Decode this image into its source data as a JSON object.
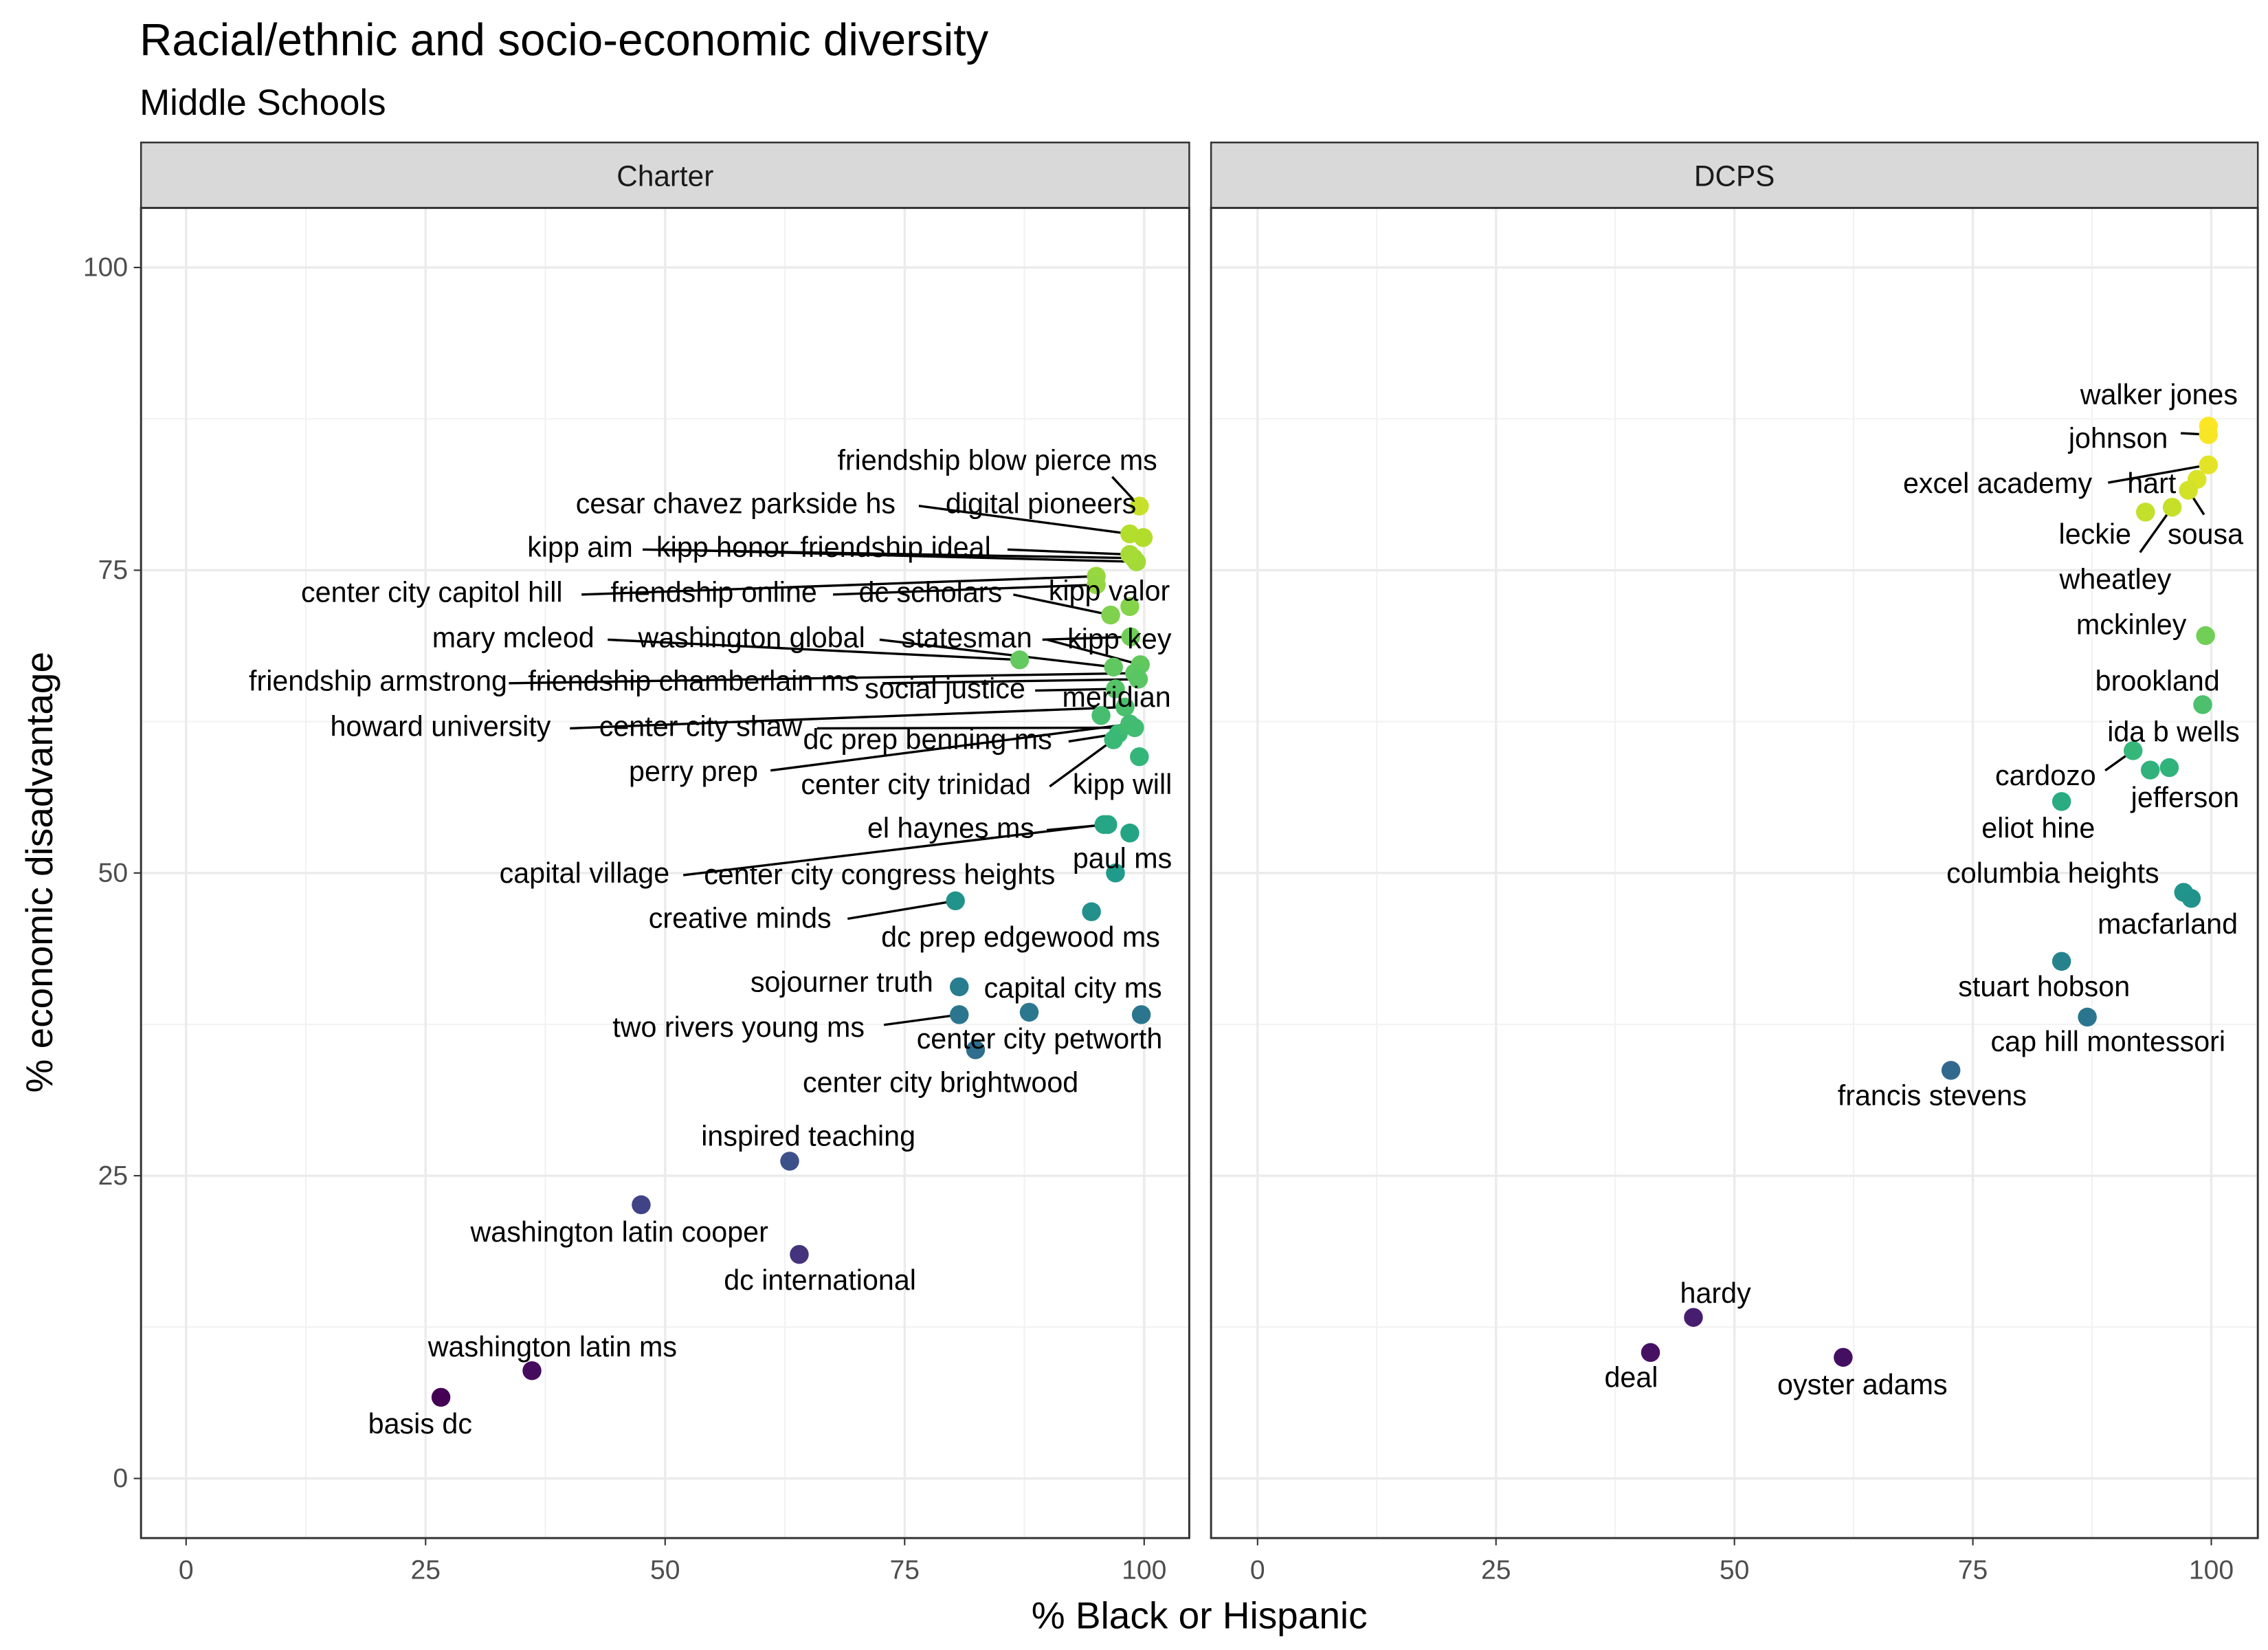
{
  "chart_data": {
    "type": "scatter",
    "title": "Racial/ethnic and socio-economic diversity",
    "subtitle": "Middle Schools",
    "xlabel": "% Black or Hispanic",
    "ylabel": "% economic disadvantage",
    "xlim": [
      0,
      100
    ],
    "ylim": [
      0,
      100
    ],
    "xticks": [
      "0",
      "25",
      "50",
      "75",
      "100"
    ],
    "yticks": [
      "0",
      "25",
      "50",
      "75",
      "100"
    ],
    "grid": true,
    "color_scale": "viridis by % economic disadvantage",
    "panels": [
      {
        "name": "Charter",
        "points": [
          {
            "label": "friendship blow pierce ms",
            "x": 99.5,
            "y": 80.3
          },
          {
            "label": "cesar chavez parkside hs",
            "x": 98.5,
            "y": 78.0
          },
          {
            "label": "digital pioneers",
            "x": 99.9,
            "y": 77.7
          },
          {
            "label": "kipp aim",
            "x": 98.9,
            "y": 76.0
          },
          {
            "label": "kipp honor",
            "x": 99.2,
            "y": 75.7
          },
          {
            "label": "friendship ideal",
            "x": 98.5,
            "y": 76.3
          },
          {
            "label": "center city capitol hill",
            "x": 95.0,
            "y": 74.5
          },
          {
            "label": "friendship online",
            "x": 95.0,
            "y": 73.8
          },
          {
            "label": "dc scholars",
            "x": 96.5,
            "y": 71.3
          },
          {
            "label": "kipp valor",
            "x": 98.5,
            "y": 72.0
          },
          {
            "label": "mary mcleod",
            "x": 87.0,
            "y": 67.6
          },
          {
            "label": "washington global",
            "x": 96.8,
            "y": 67.0
          },
          {
            "label": "statesman",
            "x": 98.6,
            "y": 69.5
          },
          {
            "label": "kipp key",
            "x": 99.6,
            "y": 67.2
          },
          {
            "label": "friendship armstrong",
            "x": 99.0,
            "y": 66.5
          },
          {
            "label": "friendship chamberlain ms",
            "x": 99.4,
            "y": 66.0
          },
          {
            "label": "social justice",
            "x": 97.0,
            "y": 65.2
          },
          {
            "label": "meridian",
            "x": 95.5,
            "y": 63.0
          },
          {
            "label": "howard university",
            "x": 98.0,
            "y": 63.7
          },
          {
            "label": "center city shaw",
            "x": 99.0,
            "y": 62.0
          },
          {
            "label": "dc prep benning ms",
            "x": 97.3,
            "y": 61.5
          },
          {
            "label": "perry prep",
            "x": 98.5,
            "y": 62.3
          },
          {
            "label": "center city trinidad",
            "x": 96.8,
            "y": 61.0
          },
          {
            "label": "kipp will",
            "x": 99.5,
            "y": 59.6
          },
          {
            "label": "el haynes ms",
            "x": 96.2,
            "y": 54.0
          },
          {
            "label": "capital village",
            "x": 95.8,
            "y": 54.0
          },
          {
            "label": "center city congress heights",
            "x": 98.5,
            "y": 53.3
          },
          {
            "label": "paul ms",
            "x": 97.0,
            "y": 50.0
          },
          {
            "label": "dc prep edgewood ms",
            "x": 94.5,
            "y": 46.8
          },
          {
            "label": "creative minds",
            "x": 80.3,
            "y": 47.7
          },
          {
            "label": "sojourner truth",
            "x": 80.7,
            "y": 40.6
          },
          {
            "label": "two rivers young ms",
            "x": 80.7,
            "y": 38.3
          },
          {
            "label": "capital city ms",
            "x": 88.0,
            "y": 38.5
          },
          {
            "label": "center city petworth",
            "x": 99.7,
            "y": 38.3
          },
          {
            "label": "center city brightwood",
            "x": 82.4,
            "y": 35.4
          },
          {
            "label": "inspired teaching",
            "x": 63.0,
            "y": 26.2
          },
          {
            "label": "washington latin cooper",
            "x": 47.5,
            "y": 22.6
          },
          {
            "label": "dc international",
            "x": 64.0,
            "y": 18.5
          },
          {
            "label": "washington latin ms",
            "x": 36.1,
            "y": 8.9
          },
          {
            "label": "basis dc",
            "x": 26.6,
            "y": 6.7
          }
        ]
      },
      {
        "name": "DCPS",
        "points": [
          {
            "label": "walker jones",
            "x": 99.7,
            "y": 86.9
          },
          {
            "label": "johnson",
            "x": 99.7,
            "y": 86.2
          },
          {
            "label": "excel academy",
            "x": 99.7,
            "y": 83.7
          },
          {
            "label": "hart",
            "x": 98.5,
            "y": 82.5
          },
          {
            "label": "sousa",
            "x": 97.6,
            "y": 81.6
          },
          {
            "label": "leckie",
            "x": 93.1,
            "y": 79.8
          },
          {
            "label": "wheatley",
            "x": 95.9,
            "y": 80.2
          },
          {
            "label": "mckinley",
            "x": 99.4,
            "y": 69.6
          },
          {
            "label": "brookland",
            "x": 99.1,
            "y": 63.9
          },
          {
            "label": "ida b wells",
            "x": 95.6,
            "y": 58.7
          },
          {
            "label": "cardozo",
            "x": 91.8,
            "y": 60.1
          },
          {
            "label": "jefferson",
            "x": 93.6,
            "y": 58.5
          },
          {
            "label": "eliot hine",
            "x": 84.3,
            "y": 55.9
          },
          {
            "label": "columbia heights",
            "x": 97.1,
            "y": 48.4
          },
          {
            "label": "macfarland",
            "x": 97.9,
            "y": 47.9
          },
          {
            "label": "stuart hobson",
            "x": 84.3,
            "y": 42.7
          },
          {
            "label": "cap hill montessori",
            "x": 87.0,
            "y": 38.1
          },
          {
            "label": "francis stevens",
            "x": 72.7,
            "y": 33.7
          },
          {
            "label": "hardy",
            "x": 45.7,
            "y": 13.3
          },
          {
            "label": "deal",
            "x": 41.2,
            "y": 10.4
          },
          {
            "label": "oyster adams",
            "x": 61.4,
            "y": 10.0
          }
        ]
      }
    ]
  }
}
